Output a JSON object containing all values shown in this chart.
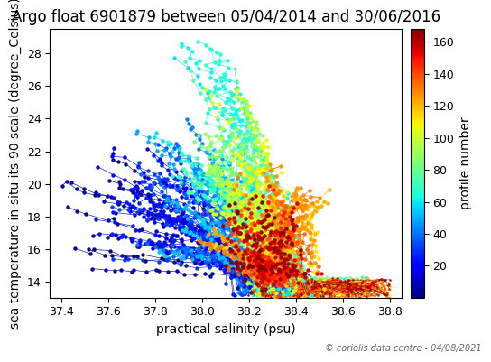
{
  "title": "Argo float 6901879 between 05/04/2014 and 30/06/2016",
  "xlabel": "practical salinity (psu)",
  "ylabel": "sea temperature in-situ its-90 scale (degree_Celsius)",
  "colorbar_label": "profile number",
  "xlim": [
    37.35,
    38.85
  ],
  "ylim": [
    13.0,
    29.5
  ],
  "xticks": [
    37.4,
    37.6,
    37.8,
    38.0,
    38.2,
    38.4,
    38.6,
    38.8
  ],
  "yticks": [
    14,
    16,
    18,
    20,
    22,
    24,
    26,
    28
  ],
  "colorbar_ticks": [
    20,
    40,
    60,
    80,
    100,
    120,
    140,
    160
  ],
  "colorbar_vmin": 0,
  "colorbar_vmax": 168,
  "num_profiles": 168,
  "copyright": "© coriolis data centre - 04/08/2021",
  "cmap": "jet",
  "title_fontsize": 12,
  "label_fontsize": 10,
  "tick_fontsize": 9,
  "bg_color": "#ffffff",
  "figsize": [
    5.5,
    4.0
  ],
  "dpi": 100
}
